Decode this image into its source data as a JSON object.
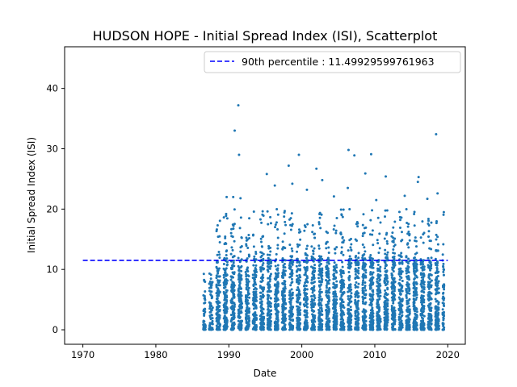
{
  "chart_data": {
    "type": "scatter",
    "title": "HUDSON HOPE - Initial Spread Index (ISI), Scatterplot",
    "xlabel": "Date",
    "ylabel": "Initial Spread Index (ISI)",
    "xlim": [
      1967.5,
      2022.4
    ],
    "ylim": [
      -2.4,
      46.9
    ],
    "x_ticks": [
      1970,
      1980,
      1990,
      2000,
      2010,
      2020
    ],
    "y_ticks": [
      0,
      10,
      20,
      30,
      40
    ],
    "grid": false,
    "legend_position": "top-right",
    "colors": {
      "points": "#1f77b4",
      "percentile_line": "#0000ff"
    },
    "percentile_line": {
      "label": "90th percentile : 11.49929599761963",
      "value": 11.49929599761963,
      "x_range": [
        1970,
        2020
      ],
      "style": "dashed"
    },
    "series": [
      {
        "data_range": {
          "x": [
            1986.5,
            2019.5
          ],
          "y": [
            0,
            37.2
          ]
        },
        "notable_points": [
          [
            1991.3,
            37.2
          ],
          [
            1990.8,
            33.0
          ],
          [
            1991.4,
            29.0
          ],
          [
            2018.4,
            32.4
          ],
          [
            2006.4,
            29.8
          ],
          [
            2007.2,
            28.9
          ],
          [
            2009.5,
            29.1
          ],
          [
            1999.6,
            29.0
          ],
          [
            1998.2,
            27.2
          ],
          [
            2002.0,
            26.7
          ],
          [
            2011.5,
            25.4
          ],
          [
            2016.0,
            25.3
          ],
          [
            2008.7,
            25.9
          ],
          [
            2015.9,
            24.5
          ],
          [
            1995.2,
            25.8
          ],
          [
            2002.8,
            24.8
          ],
          [
            1996.3,
            23.9
          ],
          [
            1998.7,
            24.2
          ],
          [
            2000.7,
            23.2
          ],
          [
            2006.3,
            23.5
          ],
          [
            2018.6,
            22.6
          ],
          [
            1990.6,
            22.0
          ],
          [
            1991.6,
            21.8
          ],
          [
            2004.4,
            22.1
          ],
          [
            2014.1,
            22.2
          ],
          [
            2017.2,
            21.7
          ],
          [
            2010.2,
            21.5
          ],
          [
            1989.7,
            22.0
          ]
        ]
      }
    ]
  }
}
